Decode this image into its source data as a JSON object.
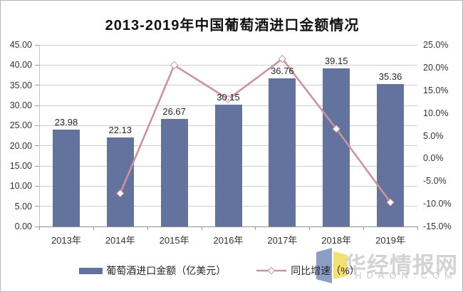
{
  "title": "2013-2019年中国葡萄酒进口金额情况",
  "chart_data": {
    "type": "bar",
    "categories": [
      "2013年",
      "2014年",
      "2015年",
      "2016年",
      "2017年",
      "2018年",
      "2019年"
    ],
    "series": [
      {
        "name": "葡萄酒进口金额（亿美元）",
        "type": "bar",
        "axis": "left",
        "color": "#64739e",
        "values": [
          23.98,
          22.13,
          26.67,
          30.15,
          36.76,
          39.15,
          35.36
        ],
        "labels": [
          "23.98",
          "22.13",
          "26.67",
          "30.15",
          "36.76",
          "39.15",
          "35.36"
        ]
      },
      {
        "name": "同比增速（%）",
        "type": "line",
        "axis": "right",
        "color": "#c9939f",
        "marker": "white-diamond",
        "values": [
          null,
          -7.71,
          20.52,
          13.05,
          21.92,
          6.5,
          -9.68
        ]
      }
    ],
    "left_axis": {
      "min": 0,
      "max": 45,
      "step": 5,
      "tick_labels": [
        "45.00",
        "40.00",
        "35.00",
        "30.00",
        "25.00",
        "20.00",
        "15.00",
        "10.00",
        "5.00",
        "0.00"
      ]
    },
    "right_axis": {
      "min": -15,
      "max": 25,
      "step": 5,
      "tick_labels": [
        "25.0%",
        "20.0%",
        "15.0%",
        "10.0%",
        "5.0%",
        "0.0%",
        "-5.0%",
        "-10.0%",
        "-15.0%"
      ]
    },
    "grid": true,
    "legend_position": "bottom"
  },
  "legend": {
    "items": [
      {
        "label": "葡萄酒进口金额（亿美元）",
        "swatch": "bar",
        "color": "#64739e"
      },
      {
        "label": "同比增速（%）",
        "swatch": "line-diamond",
        "color": "#c9939f"
      }
    ]
  },
  "watermark": {
    "cn": "华经情报网",
    "en": "HUAON.COM",
    "logo_blue": "#8d9ec4",
    "logo_yellow": "#f6df73"
  },
  "colors": {
    "grid": "#cdcdcd",
    "axis": "#8f8f8f",
    "background": "#ffffff",
    "border": "#b5b5b5"
  }
}
